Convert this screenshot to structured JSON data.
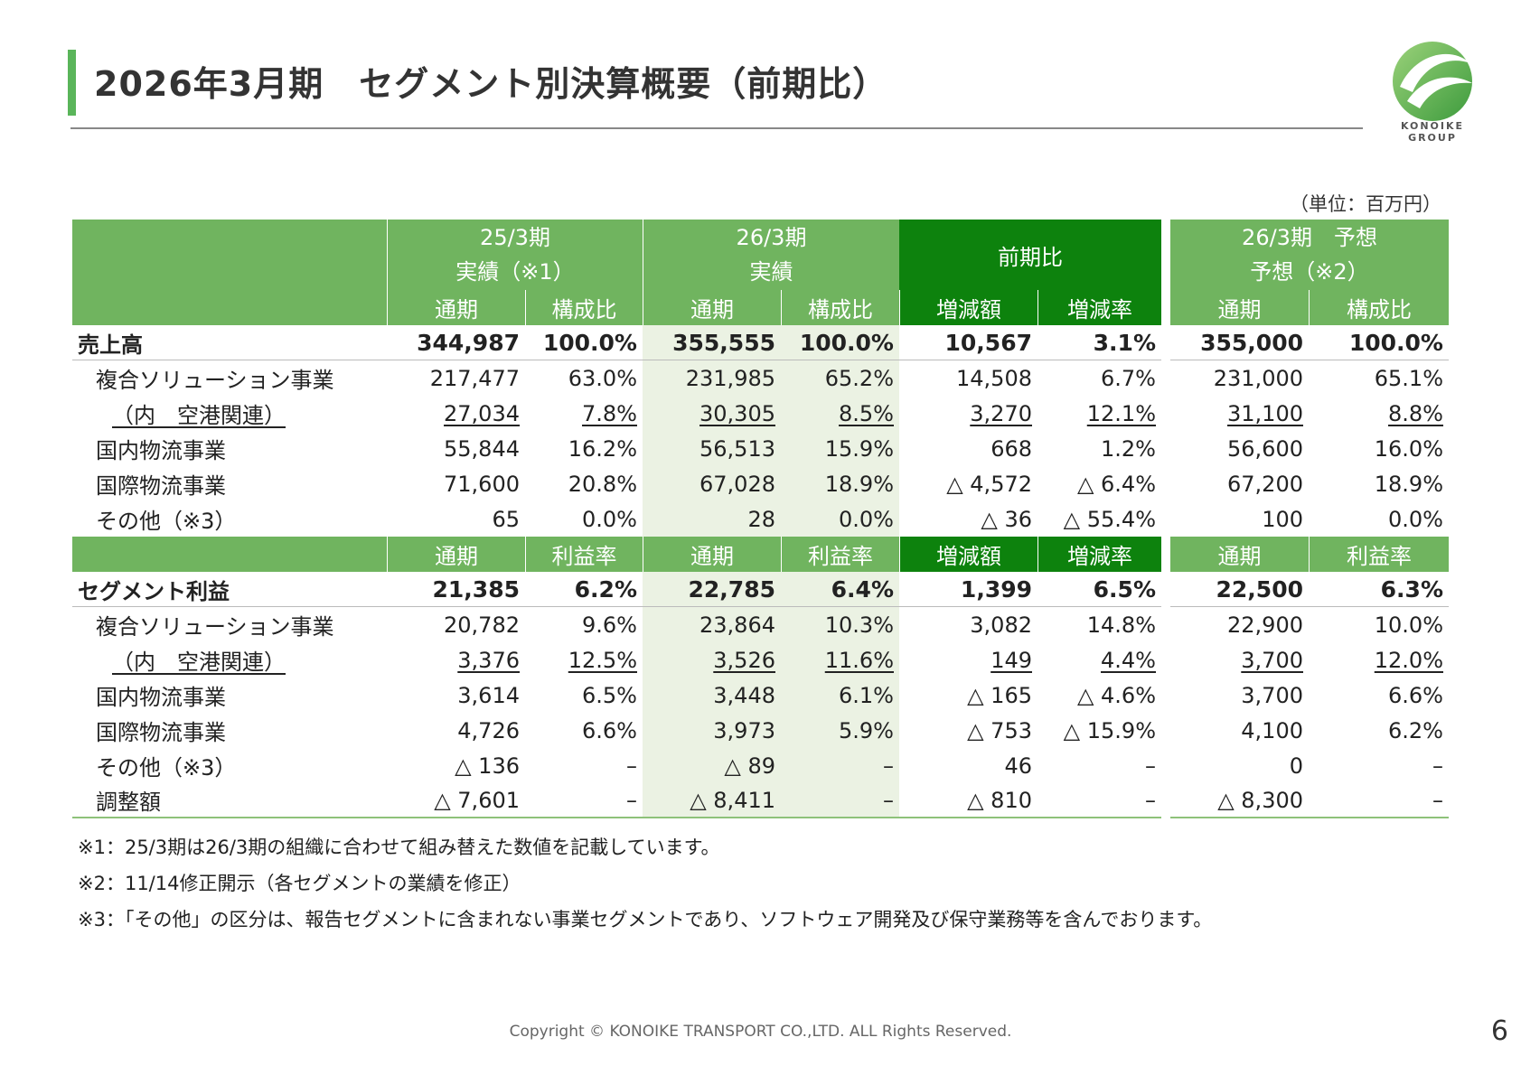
{
  "title": "2026年3月期　セグメント別決算概要（前期比）",
  "logo": {
    "line1": "KONOIKE",
    "line2": "GROUP"
  },
  "unit": "（単位：百万円）",
  "header": {
    "col_a_line1": "25/3期",
    "col_a_line2": "実績（※1）",
    "col_b_line1": "26/3期",
    "col_b_line2": "実績",
    "col_c": "前期比",
    "col_d_line1": "26/3期　予想",
    "col_d_line2": "予想（※2）",
    "sales_sub": [
      "通期",
      "構成比",
      "通期",
      "構成比",
      "増減額",
      "増減率",
      "通期",
      "構成比"
    ],
    "profit_sub": [
      "通期",
      "利益率",
      "通期",
      "利益率",
      "増減額",
      "増減率",
      "通期",
      "利益率"
    ]
  },
  "sales_rows": [
    {
      "label": "売上高",
      "cells": [
        "344,987",
        "100.0%",
        "355,555",
        "100.0%",
        "10,567",
        "3.1%",
        "355,000",
        "100.0%"
      ]
    },
    {
      "label": "複合ソリューション事業",
      "cells": [
        "217,477",
        "63.0%",
        "231,985",
        "65.2%",
        "14,508",
        "6.7%",
        "231,000",
        "65.1%"
      ]
    },
    {
      "label": "（内　空港関連）",
      "cells": [
        "27,034",
        "7.8%",
        "30,305",
        "8.5%",
        "3,270",
        "12.1%",
        "31,100",
        "8.8%"
      ]
    },
    {
      "label": "国内物流事業",
      "cells": [
        "55,844",
        "16.2%",
        "56,513",
        "15.9%",
        "668",
        "1.2%",
        "56,600",
        "16.0%"
      ]
    },
    {
      "label": "国際物流事業",
      "cells": [
        "71,600",
        "20.8%",
        "67,028",
        "18.9%",
        "△ 4,572",
        "△ 6.4%",
        "67,200",
        "18.9%"
      ]
    },
    {
      "label": "その他（※3）",
      "cells": [
        "65",
        "0.0%",
        "28",
        "0.0%",
        "△ 36",
        "△ 55.4%",
        "100",
        "0.0%"
      ]
    }
  ],
  "profit_rows": [
    {
      "label": "セグメント利益",
      "cells": [
        "21,385",
        "6.2%",
        "22,785",
        "6.4%",
        "1,399",
        "6.5%",
        "22,500",
        "6.3%"
      ]
    },
    {
      "label": "複合ソリューション事業",
      "cells": [
        "20,782",
        "9.6%",
        "23,864",
        "10.3%",
        "3,082",
        "14.8%",
        "22,900",
        "10.0%"
      ]
    },
    {
      "label": "（内　空港関連）",
      "cells": [
        "3,376",
        "12.5%",
        "3,526",
        "11.6%",
        "149",
        "4.4%",
        "3,700",
        "12.0%"
      ]
    },
    {
      "label": "国内物流事業",
      "cells": [
        "3,614",
        "6.5%",
        "3,448",
        "6.1%",
        "△ 165",
        "△ 4.6%",
        "3,700",
        "6.6%"
      ]
    },
    {
      "label": "国際物流事業",
      "cells": [
        "4,726",
        "6.6%",
        "3,973",
        "5.9%",
        "△ 753",
        "△ 15.9%",
        "4,100",
        "6.2%"
      ]
    },
    {
      "label": "その他（※3）",
      "cells": [
        "△ 136",
        "–",
        "△ 89",
        "–",
        "46",
        "–",
        "0",
        "–"
      ]
    },
    {
      "label": "調整額",
      "cells": [
        "△ 7,601",
        "–",
        "△ 8,411",
        "–",
        "△ 810",
        "–",
        "△ 8,300",
        "–"
      ]
    }
  ],
  "notes": [
    "※1：25/3期は26/3期の組織に合わせて組み替えた数値を記載しています。",
    "※2：11/14修正開示（各セグメントの業績を修正）",
    "※3：「その他」の区分は、報告セグメントに含まれない事業セグメントであり、ソフトウェア開発及び保守業務等を含んでおります。"
  ],
  "copyright": "Copyright © KONOIKE TRANSPORT CO.,LTD.  ALL Rights Reserved.",
  "page_number": "6",
  "colors": {
    "header_green": "#70b45f",
    "header_dark_green": "#0d820d",
    "highlight_col": "#ebf2e3",
    "accent_bar": "#5ab55a"
  }
}
